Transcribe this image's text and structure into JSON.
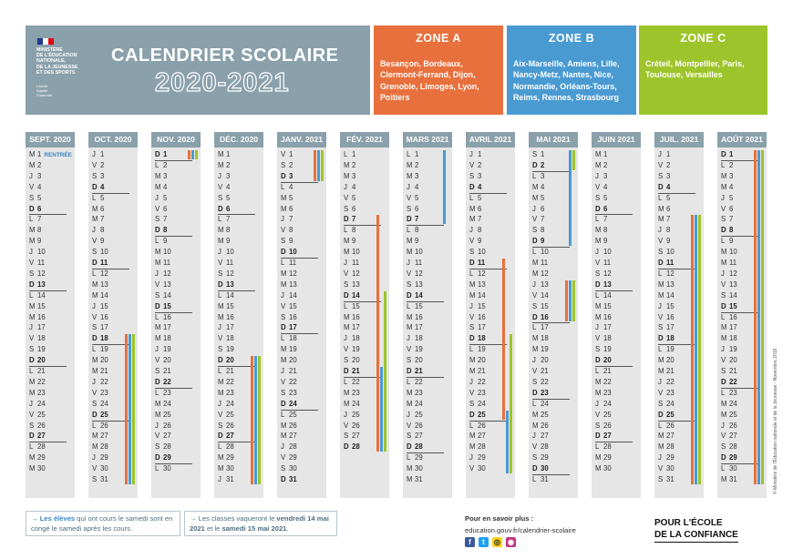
{
  "header": {
    "ministry_lines": [
      "MINISTÈRE",
      "DE L'ÉDUCATION",
      "NATIONALE,",
      "DE LA JEUNESSE",
      "ET DES SPORTS"
    ],
    "motto_lines": [
      "Liberté",
      "Égalité",
      "Fraternité"
    ],
    "title": "CALENDRIER SCOLAIRE",
    "year": "2020-2021",
    "flag_colors": [
      "#1f3b8e",
      "#ffffff",
      "#e1000f"
    ]
  },
  "zones": [
    {
      "name": "ZONE A",
      "color": "#e8703c",
      "cities": "Besançon, Bordeaux, Clermont-Ferrand, Dijon, Grenoble, Limoges, Lyon, Poitiers"
    },
    {
      "name": "ZONE B",
      "color": "#4a9ad2",
      "cities": "Aix-Marseille, Amiens, Lille, Nancy-Metz, Nantes, Nice, Normandie, Orléans-Tours, Reims, Rennes, Strasbourg"
    },
    {
      "name": "ZONE C",
      "color": "#9dc52b",
      "cities": "Créteil, Montpellier, Paris, Toulouse, Versailles"
    }
  ],
  "weekday_letters": [
    "L",
    "M",
    "M",
    "J",
    "V",
    "S",
    "D"
  ],
  "months": [
    {
      "label": "SEPT. 2020",
      "start_weekday": 1,
      "days": 30,
      "note_day": 1,
      "note": "RENTRÉE",
      "vacations": []
    },
    {
      "label": "OCT. 2020",
      "start_weekday": 3,
      "days": 31,
      "vacations": [
        {
          "zone": "A",
          "from": 18,
          "to": 31
        },
        {
          "zone": "B",
          "from": 18,
          "to": 31
        },
        {
          "zone": "C",
          "from": 18,
          "to": 31
        }
      ]
    },
    {
      "label": "NOV. 2020",
      "start_weekday": 6,
      "days": 30,
      "vacations": [
        {
          "zone": "A",
          "from": 1,
          "to": 1
        },
        {
          "zone": "B",
          "from": 1,
          "to": 1
        },
        {
          "zone": "C",
          "from": 1,
          "to": 1
        }
      ]
    },
    {
      "label": "DÉC. 2020",
      "start_weekday": 1,
      "days": 31,
      "vacations": [
        {
          "zone": "A",
          "from": 20,
          "to": 31
        },
        {
          "zone": "B",
          "from": 20,
          "to": 31
        },
        {
          "zone": "C",
          "from": 20,
          "to": 31
        }
      ]
    },
    {
      "label": "JANV. 2021",
      "start_weekday": 4,
      "days": 31,
      "vacations": [
        {
          "zone": "A",
          "from": 1,
          "to": 3
        },
        {
          "zone": "B",
          "from": 1,
          "to": 3
        },
        {
          "zone": "C",
          "from": 1,
          "to": 3
        }
      ]
    },
    {
      "label": "FÉV. 2021",
      "start_weekday": 0,
      "days": 28,
      "vacations": [
        {
          "zone": "A",
          "from": 7,
          "to": 28
        },
        {
          "zone": "B",
          "from": 21,
          "to": 28
        },
        {
          "zone": "C",
          "from": 14,
          "to": 28
        }
      ]
    },
    {
      "label": "MARS 2021",
      "start_weekday": 0,
      "days": 31,
      "vacations": [
        {
          "zone": "B",
          "from": 1,
          "to": 7
        }
      ]
    },
    {
      "label": "AVRIL 2021",
      "start_weekday": 3,
      "days": 30,
      "vacations": [
        {
          "zone": "A",
          "from": 11,
          "to": 25
        },
        {
          "zone": "B",
          "from": 25,
          "to": 30
        },
        {
          "zone": "C",
          "from": 18,
          "to": 30
        }
      ]
    },
    {
      "label": "MAI 2021",
      "start_weekday": 5,
      "days": 31,
      "vacations": [
        {
          "zone": "B",
          "from": 1,
          "to": 9
        },
        {
          "zone": "C",
          "from": 1,
          "to": 2
        },
        {
          "zone": "A",
          "from": 13,
          "to": 16
        },
        {
          "zone": "B",
          "from": 13,
          "to": 16
        },
        {
          "zone": "C",
          "from": 13,
          "to": 16
        }
      ]
    },
    {
      "label": "JUIN 2021",
      "start_weekday": 1,
      "days": 30,
      "vacations": []
    },
    {
      "label": "JUIL. 2021",
      "start_weekday": 3,
      "days": 31,
      "vacations": [
        {
          "zone": "A",
          "from": 7,
          "to": 31
        },
        {
          "zone": "B",
          "from": 7,
          "to": 31
        },
        {
          "zone": "C",
          "from": 7,
          "to": 31
        }
      ]
    },
    {
      "label": "AOÛT 2021",
      "start_weekday": 6,
      "days": 31,
      "vacations": [
        {
          "zone": "A",
          "from": 1,
          "to": 31
        },
        {
          "zone": "B",
          "from": 1,
          "to": 31
        },
        {
          "zone": "C",
          "from": 1,
          "to": 31
        }
      ]
    }
  ],
  "footer": {
    "note1_highlight": "Les élèves",
    "note1_rest": " qui ont cours le samedi sont en congé le samedi après les cours.",
    "note2_pre": "Les classes vaqueront le ",
    "note2_date1": "vendredi 14 mai 2021",
    "note2_mid": " et le ",
    "note2_date2": "samedi 15 mai 2021",
    "note2_end": ".",
    "more_label": "Pour en savoir plus :",
    "more_link": "education.gouv.fr/calendrier-scolaire",
    "social_icons": [
      "facebook-icon",
      "twitter-icon",
      "snapchat-icon",
      "instagram-icon"
    ],
    "slogan_line1": "POUR L'ÉCOLE",
    "slogan_line2": "DE LA CONFIANCE",
    "credit": "© Ministère de l'Éducation nationale et de la Jeunesse - Novembre 2019"
  }
}
